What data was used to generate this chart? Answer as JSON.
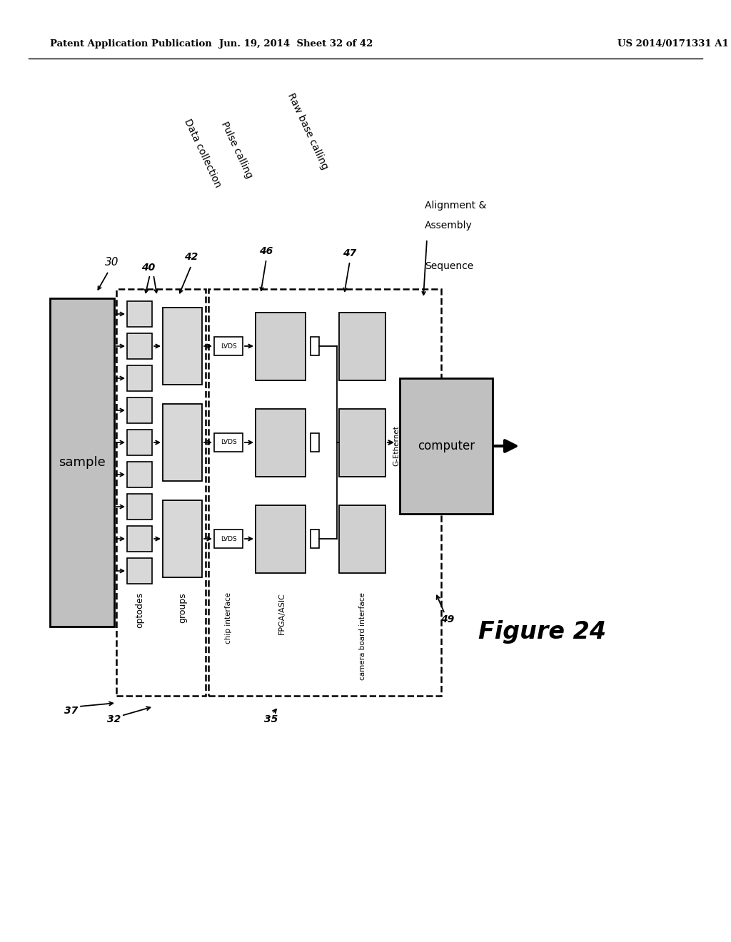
{
  "bg_color": "#ffffff",
  "header_left": "Patent Application Publication",
  "header_mid": "Jun. 19, 2014  Sheet 32 of 42",
  "header_right": "US 2014/0171331 A1",
  "figure_label": "Figure 24",
  "fill_light": "#d8d8d8",
  "fill_medium": "#c8c8c8",
  "fill_white": "#ffffff"
}
